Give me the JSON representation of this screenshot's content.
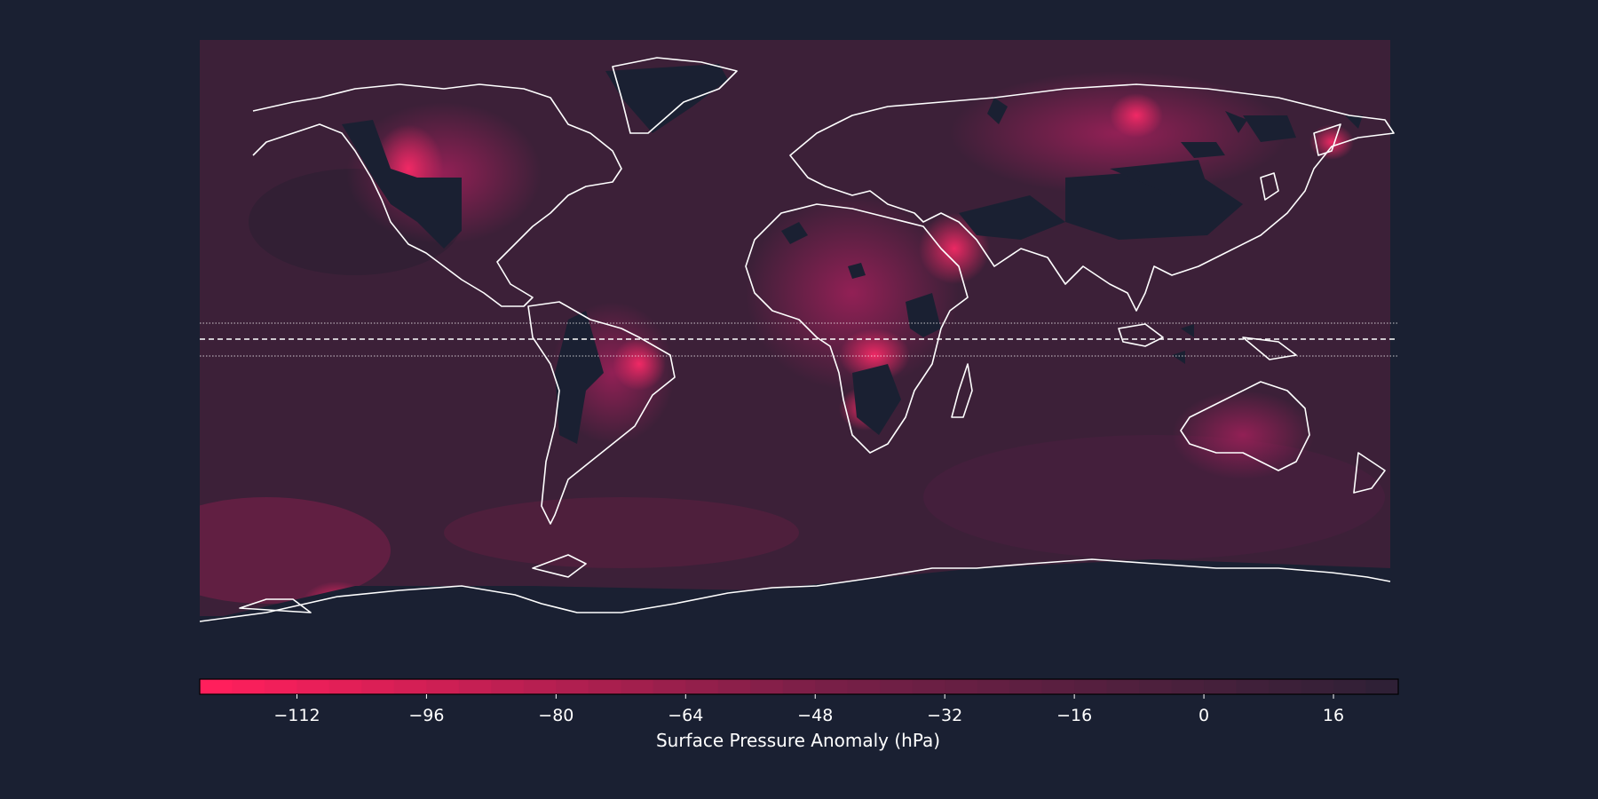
{
  "map": {
    "projection": "equirectangular",
    "extent_lon": [
      -180,
      180
    ],
    "extent_lat": [
      -90,
      83
    ],
    "background_color": "#1a2032",
    "land_mask_color": "#1a2032",
    "coastline_color": "#ffffff",
    "equator_line": {
      "lat": 0,
      "style": "dashed"
    },
    "band_lines": [
      {
        "lat": 5,
        "style": "dotted"
      },
      {
        "lat": -5,
        "style": "dotted"
      }
    ]
  },
  "colorbar": {
    "label": "Surface Pressure Anomaly (hPa)",
    "range": [
      -124,
      24
    ],
    "step": 4,
    "ticks": [
      {
        "value": -112,
        "label": "−112"
      },
      {
        "value": -96,
        "label": "−96"
      },
      {
        "value": -80,
        "label": "−80"
      },
      {
        "value": -64,
        "label": "−64"
      },
      {
        "value": -48,
        "label": "−48"
      },
      {
        "value": -32,
        "label": "−32"
      },
      {
        "value": -16,
        "label": "−16"
      },
      {
        "value": 0,
        "label": "0"
      },
      {
        "value": 16,
        "label": "16"
      }
    ],
    "color_low": "#ff1f5c",
    "color_mid": "#7a1f47",
    "color_high": "#2b2035"
  }
}
